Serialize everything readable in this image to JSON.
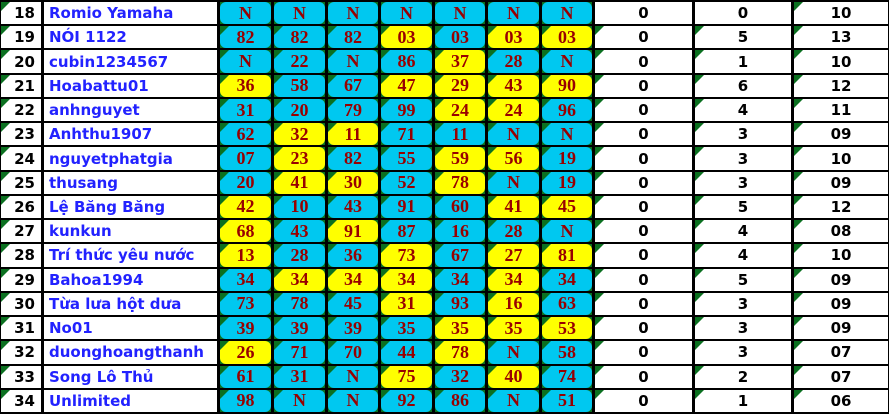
{
  "table": {
    "colors": {
      "cell_cyan": "#00c8f0",
      "cell_yellow": "#ffff00",
      "value_text": "#980000",
      "name_text": "#2222ff",
      "stat_text": "#000000",
      "triangle_green": "#0b7020",
      "border": "#000000"
    },
    "rows": [
      {
        "rank": "18",
        "name": "Romio Yamaha",
        "values": [
          "N",
          "N",
          "N",
          "N",
          "N",
          "N",
          "N"
        ],
        "value_bgs": [
          "c",
          "c",
          "c",
          "c",
          "c",
          "c",
          "c"
        ],
        "value_tris": [
          0,
          0,
          0,
          0,
          0,
          0,
          0
        ],
        "stats": [
          "0",
          "0",
          "10"
        ],
        "stat_tris": [
          0,
          0,
          1
        ],
        "rank_tri": 1
      },
      {
        "rank": "19",
        "name": "NÓI 1122",
        "values": [
          "82",
          "82",
          "82",
          "03",
          "03",
          "03",
          "03"
        ],
        "value_bgs": [
          "c",
          "c",
          "c",
          "y",
          "c",
          "y",
          "y"
        ],
        "value_tris": [
          1,
          1,
          1,
          1,
          1,
          1,
          1
        ],
        "stats": [
          "0",
          "5",
          "13"
        ],
        "stat_tris": [
          1,
          1,
          1
        ],
        "rank_tri": 1
      },
      {
        "rank": "20",
        "name": "cubin1234567",
        "values": [
          "N",
          "22",
          "N",
          "86",
          "37",
          "28",
          "N"
        ],
        "value_bgs": [
          "c",
          "c",
          "c",
          "c",
          "y",
          "c",
          "c"
        ],
        "value_tris": [
          1,
          1,
          1,
          1,
          1,
          1,
          1
        ],
        "stats": [
          "0",
          "1",
          "10"
        ],
        "stat_tris": [
          1,
          1,
          1
        ],
        "rank_tri": 1
      },
      {
        "rank": "21",
        "name": "Hoabattu01",
        "values": [
          "36",
          "58",
          "67",
          "47",
          "29",
          "43",
          "90"
        ],
        "value_bgs": [
          "y",
          "c",
          "c",
          "y",
          "y",
          "y",
          "y"
        ],
        "value_tris": [
          1,
          1,
          1,
          1,
          1,
          1,
          1
        ],
        "stats": [
          "0",
          "6",
          "12"
        ],
        "stat_tris": [
          1,
          1,
          1
        ],
        "rank_tri": 1
      },
      {
        "rank": "22",
        "name": "anhnguyet",
        "values": [
          "31",
          "20",
          "79",
          "99",
          "24",
          "24",
          "96"
        ],
        "value_bgs": [
          "c",
          "c",
          "c",
          "c",
          "y",
          "y",
          "c"
        ],
        "value_tris": [
          1,
          1,
          1,
          1,
          1,
          1,
          1
        ],
        "stats": [
          "0",
          "4",
          "11"
        ],
        "stat_tris": [
          1,
          1,
          1
        ],
        "rank_tri": 1
      },
      {
        "rank": "23",
        "name": "Anhthu1907",
        "values": [
          "62",
          "32",
          "11",
          "71",
          "11",
          "N",
          "N"
        ],
        "value_bgs": [
          "c",
          "y",
          "y",
          "c",
          "c",
          "c",
          "c"
        ],
        "value_tris": [
          1,
          1,
          1,
          1,
          1,
          1,
          1
        ],
        "stats": [
          "0",
          "3",
          "09"
        ],
        "stat_tris": [
          1,
          1,
          1
        ],
        "rank_tri": 1
      },
      {
        "rank": "24",
        "name": "nguyetphatgia",
        "values": [
          "07",
          "23",
          "82",
          "55",
          "59",
          "56",
          "19"
        ],
        "value_bgs": [
          "c",
          "y",
          "c",
          "c",
          "y",
          "y",
          "c"
        ],
        "value_tris": [
          1,
          1,
          1,
          1,
          1,
          1,
          1
        ],
        "stats": [
          "0",
          "3",
          "10"
        ],
        "stat_tris": [
          1,
          1,
          1
        ],
        "rank_tri": 1
      },
      {
        "rank": "25",
        "name": "thusang",
        "values": [
          "20",
          "41",
          "30",
          "52",
          "78",
          "N",
          "19"
        ],
        "value_bgs": [
          "c",
          "y",
          "y",
          "c",
          "y",
          "c",
          "c"
        ],
        "value_tris": [
          1,
          1,
          1,
          1,
          1,
          1,
          1
        ],
        "stats": [
          "0",
          "3",
          "09"
        ],
        "stat_tris": [
          1,
          1,
          1
        ],
        "rank_tri": 1
      },
      {
        "rank": "26",
        "name": "Lệ Băng Băng",
        "values": [
          "42",
          "10",
          "43",
          "91",
          "60",
          "41",
          "45"
        ],
        "value_bgs": [
          "y",
          "c",
          "c",
          "c",
          "c",
          "y",
          "y"
        ],
        "value_tris": [
          1,
          1,
          1,
          1,
          1,
          1,
          1
        ],
        "stats": [
          "0",
          "5",
          "12"
        ],
        "stat_tris": [
          1,
          1,
          1
        ],
        "rank_tri": 1
      },
      {
        "rank": "27",
        "name": "kunkun",
        "values": [
          "68",
          "43",
          "91",
          "87",
          "16",
          "28",
          "N"
        ],
        "value_bgs": [
          "y",
          "c",
          "y",
          "c",
          "c",
          "c",
          "c"
        ],
        "value_tris": [
          1,
          1,
          1,
          1,
          1,
          1,
          1
        ],
        "stats": [
          "0",
          "4",
          "08"
        ],
        "stat_tris": [
          1,
          1,
          1
        ],
        "rank_tri": 1
      },
      {
        "rank": "28",
        "name": "Trí thức yêu nước",
        "values": [
          "13",
          "28",
          "36",
          "73",
          "67",
          "27",
          "81"
        ],
        "value_bgs": [
          "y",
          "c",
          "c",
          "y",
          "c",
          "y",
          "y"
        ],
        "value_tris": [
          1,
          1,
          1,
          1,
          1,
          1,
          1
        ],
        "stats": [
          "0",
          "4",
          "10"
        ],
        "stat_tris": [
          1,
          1,
          1
        ],
        "rank_tri": 1
      },
      {
        "rank": "29",
        "name": "Bahoa1994",
        "values": [
          "34",
          "34",
          "34",
          "34",
          "34",
          "34",
          "34"
        ],
        "value_bgs": [
          "c",
          "y",
          "y",
          "y",
          "c",
          "y",
          "c"
        ],
        "value_tris": [
          1,
          1,
          1,
          1,
          1,
          1,
          1
        ],
        "stats": [
          "0",
          "5",
          "09"
        ],
        "stat_tris": [
          1,
          1,
          1
        ],
        "rank_tri": 1
      },
      {
        "rank": "30",
        "name": "Từa lưa hột dưa",
        "values": [
          "73",
          "78",
          "45",
          "31",
          "93",
          "16",
          "63"
        ],
        "value_bgs": [
          "c",
          "c",
          "c",
          "y",
          "c",
          "y",
          "c"
        ],
        "value_tris": [
          1,
          1,
          1,
          1,
          1,
          1,
          1
        ],
        "stats": [
          "0",
          "3",
          "09"
        ],
        "stat_tris": [
          1,
          1,
          1
        ],
        "rank_tri": 1
      },
      {
        "rank": "31",
        "name": "No01",
        "values": [
          "39",
          "39",
          "39",
          "35",
          "35",
          "35",
          "53"
        ],
        "value_bgs": [
          "c",
          "c",
          "c",
          "c",
          "y",
          "y",
          "y"
        ],
        "value_tris": [
          1,
          1,
          1,
          1,
          1,
          1,
          1
        ],
        "stats": [
          "0",
          "3",
          "09"
        ],
        "stat_tris": [
          1,
          1,
          1
        ],
        "rank_tri": 1
      },
      {
        "rank": "32",
        "name": "duonghoangthanh",
        "values": [
          "26",
          "71",
          "70",
          "44",
          "78",
          "N",
          "58"
        ],
        "value_bgs": [
          "y",
          "c",
          "c",
          "c",
          "y",
          "c",
          "c"
        ],
        "value_tris": [
          1,
          1,
          1,
          1,
          1,
          1,
          1
        ],
        "stats": [
          "0",
          "3",
          "07"
        ],
        "stat_tris": [
          1,
          1,
          1
        ],
        "rank_tri": 1
      },
      {
        "rank": "33",
        "name": "Song Lô Thủ",
        "values": [
          "61",
          "31",
          "N",
          "75",
          "32",
          "40",
          "74"
        ],
        "value_bgs": [
          "c",
          "c",
          "c",
          "y",
          "c",
          "y",
          "c"
        ],
        "value_tris": [
          1,
          1,
          1,
          1,
          1,
          1,
          1
        ],
        "stats": [
          "0",
          "2",
          "07"
        ],
        "stat_tris": [
          1,
          1,
          1
        ],
        "rank_tri": 1
      },
      {
        "rank": "34",
        "name": "Unlimited",
        "values": [
          "98",
          "N",
          "N",
          "92",
          "86",
          "N",
          "51"
        ],
        "value_bgs": [
          "c",
          "c",
          "c",
          "c",
          "c",
          "c",
          "c"
        ],
        "value_tris": [
          1,
          1,
          1,
          1,
          1,
          1,
          1
        ],
        "stats": [
          "0",
          "1",
          "06"
        ],
        "stat_tris": [
          1,
          1,
          1
        ],
        "rank_tri": 1
      }
    ]
  }
}
